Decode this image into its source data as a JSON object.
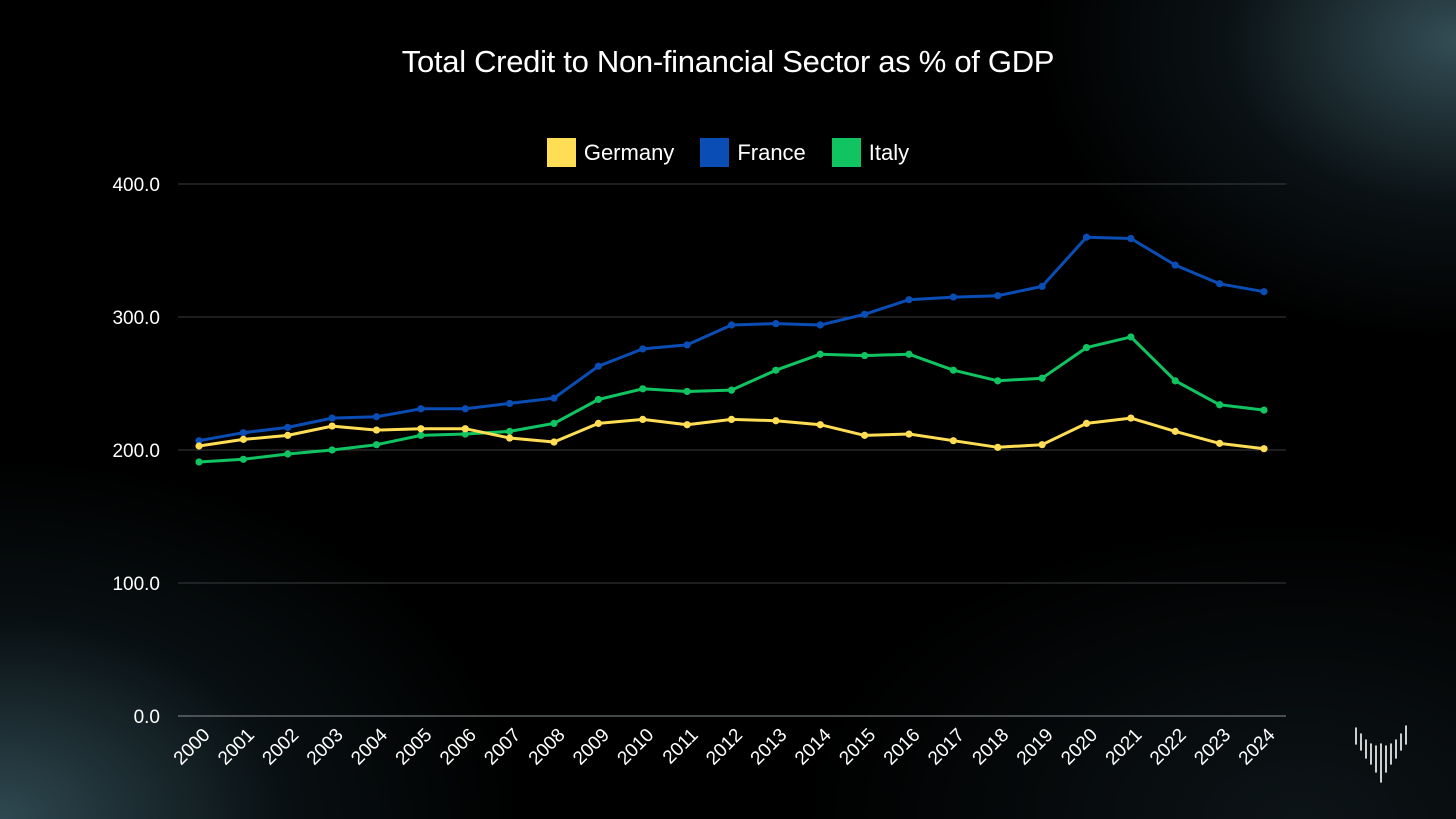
{
  "chart_data": {
    "type": "line",
    "title": "Total Credit to Non-financial Sector as % of GDP",
    "xlabel": "",
    "ylabel": "",
    "categories": [
      "2000",
      "2001",
      "2002",
      "2003",
      "2004",
      "2005",
      "2006",
      "2007",
      "2008",
      "2009",
      "2010",
      "2011",
      "2012",
      "2013",
      "2014",
      "2015",
      "2016",
      "2017",
      "2018",
      "2019",
      "2020",
      "2021",
      "2022",
      "2023",
      "2024"
    ],
    "ylim": [
      0,
      400
    ],
    "yticks": [
      "0.0",
      "100.0",
      "200.0",
      "300.0",
      "400.0"
    ],
    "ytick_values": [
      0,
      100,
      200,
      300,
      400
    ],
    "grid": true,
    "legend_position": "top-center",
    "series": [
      {
        "name": "Germany",
        "color": "#FFDD55",
        "values": [
          203,
          208,
          211,
          218,
          215,
          216,
          216,
          209,
          206,
          220,
          223,
          219,
          223,
          222,
          219,
          211,
          212,
          207,
          202,
          204,
          220,
          224,
          214,
          205,
          201
        ]
      },
      {
        "name": "France",
        "color": "#0A4DB5",
        "values": [
          207,
          213,
          217,
          224,
          225,
          231,
          231,
          235,
          239,
          263,
          276,
          279,
          294,
          295,
          294,
          302,
          313,
          315,
          316,
          323,
          360,
          359,
          339,
          325,
          319
        ]
      },
      {
        "name": "Italy",
        "color": "#10C462",
        "values": [
          191,
          193,
          197,
          200,
          204,
          211,
          212,
          214,
          220,
          238,
          246,
          244,
          245,
          260,
          272,
          271,
          272,
          260,
          252,
          254,
          277,
          285,
          252,
          234,
          230
        ]
      }
    ]
  },
  "logo": {
    "icon": "bars-chevron-logo-icon"
  }
}
